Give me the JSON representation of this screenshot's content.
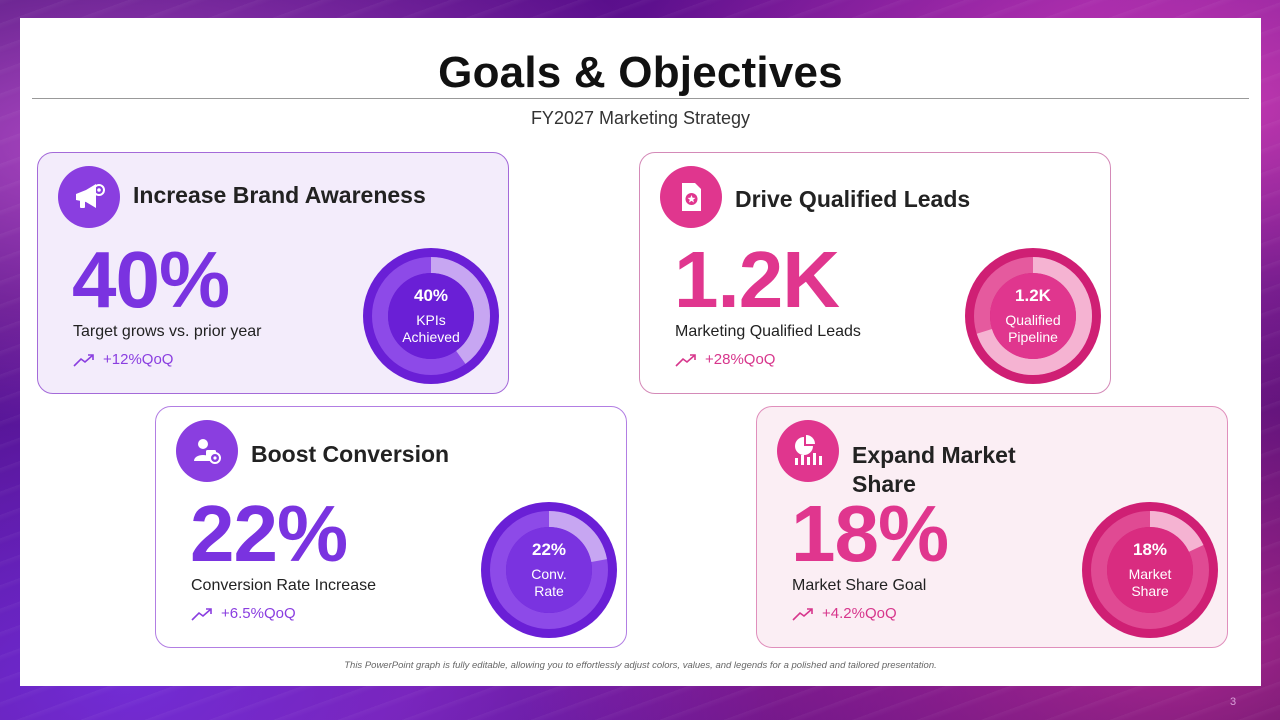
{
  "slide": {
    "title": "Goals & Objectives",
    "subtitle": "FY2027 Marketing Strategy",
    "footnote": "This PowerPoint graph is fully editable, allowing you to effortlessly adjust colors, values, and legends for a polished and tailored presentation.",
    "page_number": "3"
  },
  "cards": [
    {
      "title": "Increase Brand Awareness",
      "icon": "megaphone-gear-icon",
      "big_value": "40%",
      "description": "Target grows vs. prior year",
      "trend": "+12%QoQ",
      "donut_value": "40%",
      "donut_label_1": "KPIs",
      "donut_label_2": "Achieved",
      "donut_fraction": 0.4,
      "accent": "#7a33e0"
    },
    {
      "title": "Drive Qualified Leads",
      "icon": "certificate-document-icon",
      "big_value": "1.2K",
      "description": "Marketing Qualified Leads",
      "trend": "+28%QoQ",
      "donut_value": "1.2K",
      "donut_label_1": "Qualified",
      "donut_label_2": "Pipeline",
      "donut_fraction": 0.7,
      "accent": "#e0368e"
    },
    {
      "title": "Boost Conversion",
      "icon": "user-gear-icon",
      "big_value": "22%",
      "description": "Conversion Rate Increase",
      "trend": "+6.5%QoQ",
      "donut_value": "22%",
      "donut_label_1": "Conv.",
      "donut_label_2": "Rate",
      "donut_fraction": 0.22,
      "accent": "#7a33e0"
    },
    {
      "title_line_1": "Expand Market",
      "title_line_2": "Share",
      "icon": "pie-bar-chart-icon",
      "big_value": "18%",
      "description": "Market Share Goal",
      "trend": "+4.2%QoQ",
      "donut_value": "18%",
      "donut_label_1": "Market",
      "donut_label_2": "Share",
      "donut_fraction": 0.18,
      "accent": "#e0368e"
    }
  ]
}
